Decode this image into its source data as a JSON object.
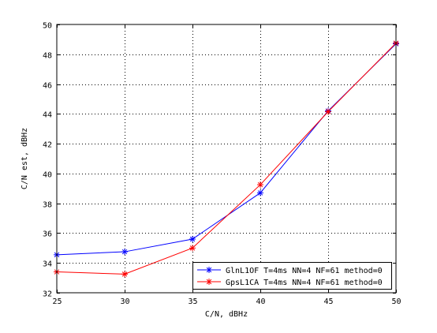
{
  "chart_data": {
    "type": "line",
    "xlabel": "C/N, dBHz",
    "ylabel": "C/N est, dBHz",
    "xlim": [
      25,
      50
    ],
    "ylim": [
      32,
      50
    ],
    "xticks": [
      25,
      30,
      35,
      40,
      45,
      50
    ],
    "yticks": [
      32,
      34,
      36,
      38,
      40,
      42,
      44,
      46,
      48,
      50
    ],
    "grid": true,
    "legend_position": "bottom-right",
    "x": [
      25,
      30,
      35,
      40,
      45,
      50
    ],
    "series": [
      {
        "name": "GlnL1OF T=4ms NN=4 NF=61 method=0",
        "color": "#0000ff",
        "marker": "asterisk",
        "values": [
          34.55,
          34.75,
          35.6,
          38.7,
          44.2,
          48.7
        ]
      },
      {
        "name": "GpsL1CA T=4ms NN=4 NF=61 method=0",
        "color": "#ff0000",
        "marker": "asterisk",
        "values": [
          33.4,
          33.25,
          35.0,
          39.25,
          44.15,
          48.75
        ]
      }
    ]
  }
}
